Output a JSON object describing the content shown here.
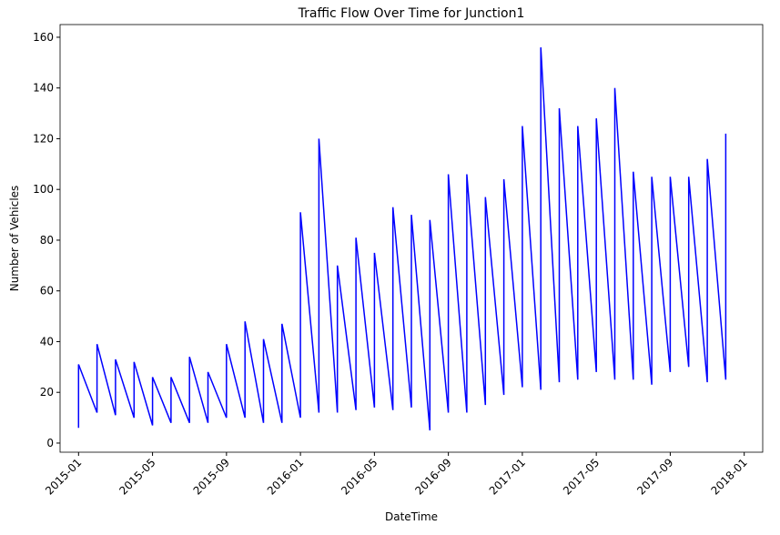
{
  "chart_data": {
    "type": "line",
    "title": "Traffic Flow Over Time for Junction1",
    "x_label": "DateTime",
    "y_label": "Number of Vehicles",
    "color": "#0000ff",
    "x": [
      "2015-01",
      "2015-01",
      "2015-02",
      "2015-02",
      "2015-03",
      "2015-03",
      "2015-04",
      "2015-04",
      "2015-05",
      "2015-05",
      "2015-06",
      "2015-06",
      "2015-07",
      "2015-07",
      "2015-08",
      "2015-08",
      "2015-09",
      "2015-09",
      "2015-10",
      "2015-10",
      "2015-11",
      "2015-11",
      "2015-12",
      "2015-12",
      "2016-01",
      "2016-01",
      "2016-02",
      "2016-02",
      "2016-03",
      "2016-03",
      "2016-04",
      "2016-04",
      "2016-05",
      "2016-05",
      "2016-06",
      "2016-06",
      "2016-07",
      "2016-07",
      "2016-08",
      "2016-08",
      "2016-09",
      "2016-09",
      "2016-10",
      "2016-10",
      "2016-11",
      "2016-11",
      "2016-12",
      "2016-12",
      "2017-01",
      "2017-01",
      "2017-02",
      "2017-02",
      "2017-03",
      "2017-03",
      "2017-04",
      "2017-04",
      "2017-05",
      "2017-05",
      "2017-06",
      "2017-06",
      "2017-07",
      "2017-07",
      "2017-08",
      "2017-08",
      "2017-09",
      "2017-09",
      "2017-10",
      "2017-10",
      "2017-11",
      "2017-11",
      "2017-12",
      "2017-12"
    ],
    "values": [
      6,
      31,
      12,
      39,
      11,
      33,
      10,
      32,
      7,
      26,
      8,
      26,
      8,
      34,
      8,
      28,
      10,
      39,
      10,
      48,
      8,
      41,
      8,
      47,
      10,
      91,
      12,
      120,
      12,
      70,
      13,
      81,
      14,
      75,
      13,
      93,
      14,
      90,
      5,
      88,
      12,
      106,
      12,
      106,
      15,
      97,
      19,
      104,
      22,
      125,
      21,
      156,
      24,
      132,
      25,
      125,
      28,
      128,
      25,
      140,
      25,
      107,
      23,
      105,
      28,
      105,
      30,
      105,
      24,
      112,
      25,
      122
    ],
    "xlim": [
      "2014-12",
      "2018-02"
    ],
    "xticks": [
      "2015-01",
      "2015-05",
      "2015-09",
      "2016-01",
      "2016-05",
      "2016-09",
      "2017-01",
      "2017-05",
      "2017-09",
      "2018-01"
    ],
    "ylim": [
      -3.6,
      165
    ],
    "yticks": [
      0,
      20,
      40,
      60,
      80,
      100,
      120,
      140,
      160
    ]
  }
}
